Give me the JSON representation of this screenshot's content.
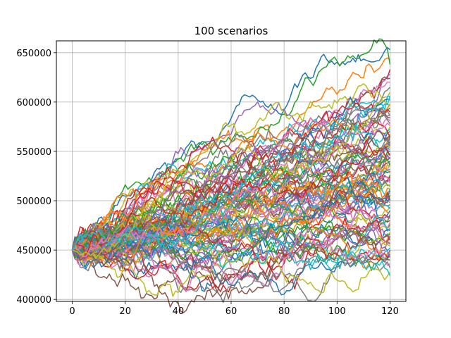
{
  "chart_data": {
    "type": "line",
    "title": "100 scenarios",
    "xlabel": "",
    "ylabel": "",
    "xlim": [
      -6,
      126
    ],
    "ylim": [
      398000,
      662000
    ],
    "x_ticks": [
      0,
      20,
      40,
      60,
      80,
      100,
      120
    ],
    "x_tick_labels": [
      "0",
      "20",
      "40",
      "60",
      "80",
      "100",
      "120"
    ],
    "y_ticks": [
      400000,
      450000,
      500000,
      550000,
      600000,
      650000
    ],
    "y_tick_labels": [
      "400000",
      "450000",
      "500000",
      "550000",
      "600000",
      "650000"
    ],
    "grid": true,
    "legend": "none",
    "n_series": 100,
    "n_points": 121,
    "x_start": 0,
    "x_end": 120,
    "start_value": 450000,
    "final_values_approx": [
      653000,
      643000,
      638000,
      633000,
      628000,
      624000,
      620000,
      615000,
      610000,
      606000,
      602000,
      598000,
      594000,
      590000,
      587000,
      584000,
      581000,
      578000,
      575000,
      572000,
      570000,
      568000,
      566000,
      564000,
      562000,
      560000,
      558000,
      556000,
      554000,
      552000,
      550000,
      548000,
      546000,
      544000,
      542000,
      540000,
      538000,
      536000,
      534000,
      532000,
      530000,
      528000,
      526000,
      524000,
      522000,
      520000,
      518000,
      516000,
      514000,
      512000,
      510000,
      508000,
      506000,
      504000,
      502000,
      500000,
      498000,
      496000,
      494000,
      492000,
      490000,
      488000,
      486000,
      484000,
      482000,
      480000,
      478000,
      476000,
      474000,
      472000,
      470000,
      468000,
      466000,
      464000,
      462000,
      460000,
      458000,
      456000,
      454000,
      452000,
      450000,
      448000,
      446000,
      444000,
      442000,
      440000,
      436000,
      432000,
      428000,
      424000,
      502000,
      512000,
      536000,
      546000,
      556000,
      566000,
      576000,
      586000,
      596000,
      606000
    ],
    "colors": [
      "#1f77b4",
      "#ff7f0e",
      "#2ca02c",
      "#d62728",
      "#9467bd",
      "#8c564b",
      "#e377c2",
      "#7f7f7f",
      "#bcbd22",
      "#17becf"
    ]
  }
}
